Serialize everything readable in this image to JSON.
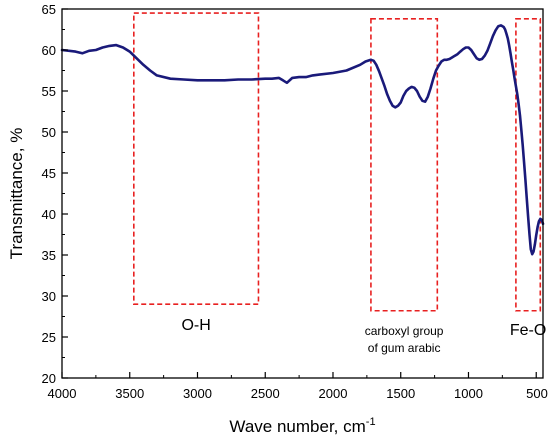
{
  "chart_data": {
    "type": "line",
    "title": "",
    "xlabel": "Wave number, cm",
    "xlabel_superscript": "-1",
    "ylabel": "Transmittance, %",
    "xlim": [
      4000,
      450
    ],
    "ylim": [
      20,
      65
    ],
    "x_reversed": true,
    "x_ticks": [
      4000,
      3500,
      3000,
      2500,
      2000,
      1500,
      1000,
      500
    ],
    "y_ticks": [
      20,
      25,
      30,
      35,
      40,
      45,
      50,
      55,
      60,
      65
    ],
    "grid": false,
    "line_color": "#1a1a7a",
    "annotation_color": "#e82020",
    "series": [
      {
        "x": [
          4000,
          3900,
          3850,
          3800,
          3750,
          3700,
          3650,
          3600,
          3550,
          3500,
          3450,
          3400,
          3350,
          3300,
          3200,
          3100,
          3000,
          2900,
          2800,
          2700,
          2600,
          2500,
          2450,
          2400,
          2370,
          2340,
          2300,
          2250,
          2200,
          2150,
          2100,
          2000,
          1900,
          1800,
          1760,
          1720,
          1700,
          1680,
          1660,
          1640,
          1620,
          1600,
          1580,
          1560,
          1540,
          1520,
          1500,
          1480,
          1460,
          1440,
          1420,
          1400,
          1380,
          1360,
          1340,
          1320,
          1300,
          1280,
          1260,
          1240,
          1220,
          1200,
          1180,
          1160,
          1140,
          1120,
          1100,
          1080,
          1060,
          1040,
          1020,
          1000,
          980,
          960,
          940,
          920,
          900,
          880,
          860,
          840,
          820,
          800,
          780,
          760,
          740,
          730,
          720,
          710,
          700,
          690,
          680,
          670,
          660,
          650,
          640,
          630,
          620,
          610,
          600,
          590,
          580,
          570,
          560,
          550,
          540,
          530,
          520,
          510,
          500,
          490,
          480,
          470,
          460,
          450
        ],
        "y": [
          60.0,
          59.8,
          59.6,
          59.9,
          60.0,
          60.3,
          60.5,
          60.6,
          60.3,
          59.8,
          59.0,
          58.2,
          57.5,
          56.9,
          56.5,
          56.4,
          56.3,
          56.3,
          56.3,
          56.4,
          56.4,
          56.5,
          56.5,
          56.6,
          56.3,
          56.0,
          56.6,
          56.7,
          56.7,
          56.9,
          57.0,
          57.2,
          57.5,
          58.2,
          58.6,
          58.8,
          58.7,
          58.2,
          57.4,
          56.5,
          55.6,
          54.6,
          53.8,
          53.2,
          53.0,
          53.2,
          53.6,
          54.4,
          55.0,
          55.3,
          55.5,
          55.4,
          55.0,
          54.3,
          53.8,
          53.7,
          54.3,
          55.3,
          56.5,
          57.5,
          58.1,
          58.6,
          58.8,
          58.8,
          58.9,
          59.1,
          59.3,
          59.5,
          59.8,
          60.1,
          60.3,
          60.3,
          60.0,
          59.5,
          59.0,
          58.8,
          58.9,
          59.3,
          59.9,
          60.8,
          61.7,
          62.4,
          62.9,
          63.0,
          62.8,
          62.5,
          62.0,
          61.4,
          60.6,
          59.6,
          58.6,
          57.6,
          56.6,
          55.6,
          54.6,
          53.4,
          52.0,
          50.3,
          48.4,
          46.4,
          44.2,
          42.0,
          39.7,
          37.5,
          35.7,
          35.1,
          35.4,
          36.3,
          37.4,
          38.4,
          39.1,
          39.4,
          39.3,
          38.8
        ]
      }
    ],
    "annotations": [
      {
        "text": "O-H",
        "box_x": [
          3470,
          2550
        ],
        "box_y": [
          29.0,
          64.5
        ]
      },
      {
        "text": "carboxyl group",
        "text2": "of gum arabic",
        "box_x": [
          1720,
          1230
        ],
        "box_y": [
          28.2,
          63.8
        ]
      },
      {
        "text": "Fe-O",
        "box_x": [
          650,
          470
        ],
        "box_y": [
          28.2,
          63.8
        ]
      }
    ]
  }
}
